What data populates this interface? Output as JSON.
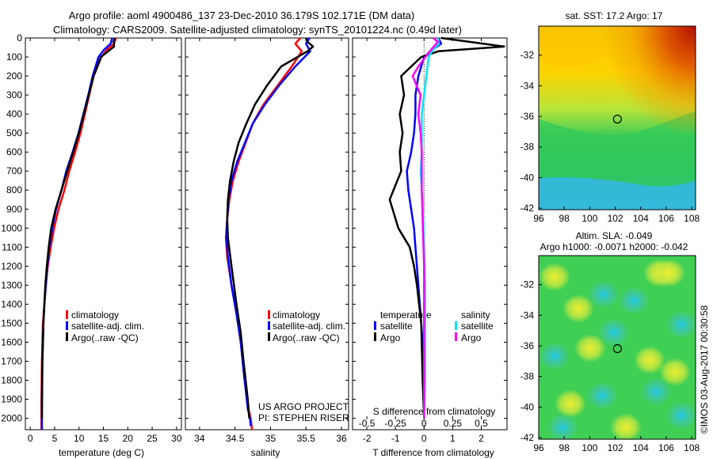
{
  "header": {
    "line1": "Argo profile: aoml 4900486_137 23-Dec-2010 36.179S 102.171E (DM data)",
    "line2": "Climatology: CARS2009. Satellite-adjusted climatology: synTS_20101224.nc (0.49d later)"
  },
  "sst_panel": {
    "title": "sat. SST: 17.2 Argo: 17"
  },
  "sla_panel": {
    "title1": "Altim. SLA: -0.049",
    "title2": "Argo h1000: -0.0071 h2000: -0.042"
  },
  "credits": {
    "project": "US ARGO PROJECT",
    "pi": "PI: STEPHEN RISER",
    "stamp": "©IMOS 03-Aug-2017 00:30:58"
  },
  "colors": {
    "climatology": "#ff0000",
    "satellite": "#0000ff",
    "argo": "#000000",
    "sal_satellite": "#00e5ff",
    "sal_argo": "#ff00ff"
  },
  "chart_data": [
    {
      "type": "line",
      "xlabel": "temperature (deg C)",
      "ylabel": "",
      "xlim": [
        -1,
        31
      ],
      "ylim": [
        2060,
        0
      ],
      "xticks": [
        0,
        5,
        10,
        15,
        20,
        25,
        30
      ],
      "yticks": [
        0,
        100,
        200,
        300,
        400,
        500,
        600,
        700,
        800,
        900,
        1000,
        1100,
        1200,
        1300,
        1400,
        1500,
        1600,
        1700,
        1800,
        1900,
        2000
      ],
      "legend": [
        "climatology",
        "satellite-adj. clim.",
        "Argo(..raw -QC)"
      ],
      "series": [
        {
          "name": "climatology",
          "color": "#ff0000",
          "x": [
            17.6,
            17.2,
            15.8,
            14.6,
            13.0,
            12.1,
            11.2,
            10.3,
            9.2,
            8.0,
            7.0,
            5.8,
            4.9,
            4.2,
            3.6,
            3.2,
            2.9,
            2.6,
            2.5,
            2.4,
            2.3,
            2.3
          ],
          "y": [
            0,
            30,
            60,
            100,
            200,
            300,
            400,
            500,
            600,
            700,
            800,
            900,
            1000,
            1100,
            1200,
            1300,
            1400,
            1500,
            1600,
            1700,
            1900,
            2060
          ]
        },
        {
          "name": "satellite-adj. clim.",
          "color": "#0000ff",
          "x": [
            16.8,
            16.5,
            15.2,
            14.0,
            12.8,
            11.9,
            10.9,
            9.9,
            8.7,
            7.4,
            6.4,
            5.3,
            4.5,
            3.9,
            3.5,
            3.2,
            2.9,
            2.7,
            2.6,
            2.5,
            2.4,
            2.4
          ],
          "y": [
            0,
            30,
            60,
            100,
            200,
            300,
            400,
            500,
            600,
            700,
            800,
            900,
            1000,
            1100,
            1200,
            1300,
            1400,
            1500,
            1600,
            1700,
            1900,
            2060
          ]
        },
        {
          "name": "Argo(..raw -QC)",
          "color": "#000000",
          "x": [
            17.3,
            17.1,
            17.2,
            14.5,
            13.0,
            12.0,
            11.0,
            10.0,
            8.8,
            7.6,
            6.4,
            5.2,
            4.3,
            3.8,
            3.4,
            3.1,
            2.9,
            2.7,
            2.6,
            2.5,
            2.4
          ],
          "y": [
            0,
            20,
            45,
            100,
            200,
            300,
            400,
            500,
            600,
            700,
            800,
            900,
            1000,
            1100,
            1200,
            1300,
            1400,
            1500,
            1600,
            1700,
            2000
          ]
        }
      ]
    },
    {
      "type": "line",
      "xlabel": "salinity",
      "ylabel": "",
      "xlim": [
        33.8,
        36.1
      ],
      "ylim": [
        2060,
        0
      ],
      "xticks": [
        34,
        34.5,
        35,
        35.5,
        36
      ],
      "xticklabels": [
        "34",
        "34.5",
        "35",
        "35.5",
        "36"
      ],
      "legend": [
        "climatology",
        "satellite-adj. clim.",
        "Argo(..raw -QC)"
      ],
      "series": [
        {
          "name": "climatology",
          "color": "#ff0000",
          "x": [
            35.42,
            35.35,
            35.44,
            35.3,
            35.1,
            34.9,
            34.75,
            34.65,
            34.55,
            34.47,
            34.42,
            34.39,
            34.37,
            34.39,
            34.45,
            34.52,
            34.58,
            34.63,
            34.66,
            34.69,
            34.72,
            34.74
          ],
          "y": [
            0,
            30,
            70,
            150,
            250,
            350,
            450,
            550,
            650,
            750,
            850,
            950,
            1050,
            1150,
            1300,
            1450,
            1600,
            1750,
            1850,
            1950,
            2000,
            2060
          ]
        },
        {
          "name": "satellite-adj. clim.",
          "color": "#0000ff",
          "x": [
            35.55,
            35.5,
            35.56,
            35.35,
            35.12,
            34.92,
            34.75,
            34.64,
            34.53,
            34.45,
            34.41,
            34.39,
            34.38,
            34.4,
            34.45,
            34.52,
            34.58,
            34.62,
            34.65,
            34.68,
            34.71,
            34.72
          ],
          "y": [
            0,
            30,
            70,
            150,
            250,
            350,
            450,
            550,
            650,
            750,
            850,
            950,
            1050,
            1150,
            1300,
            1450,
            1600,
            1750,
            1850,
            1950,
            2000,
            2040
          ]
        },
        {
          "name": "Argo(..raw -QC)",
          "color": "#000000",
          "x": [
            35.5,
            35.52,
            35.6,
            35.52,
            35.15,
            34.95,
            34.78,
            34.66,
            34.55,
            34.48,
            34.43,
            34.4,
            34.39,
            34.4,
            34.45,
            34.52,
            34.58,
            34.62,
            34.65,
            34.68,
            34.7
          ],
          "y": [
            0,
            20,
            45,
            70,
            150,
            250,
            350,
            450,
            550,
            650,
            750,
            850,
            950,
            1050,
            1200,
            1400,
            1550,
            1700,
            1800,
            1900,
            2000
          ]
        }
      ]
    },
    {
      "type": "line",
      "xlabel": "T difference from climatology",
      "top_axis_label": "S difference from climatology",
      "ylabel": "",
      "xlim": [
        -2.5,
        2.9
      ],
      "ylim": [
        2060,
        0
      ],
      "xticks": [
        -2,
        -1,
        0,
        1,
        2
      ],
      "top_xticks": [
        -0.5,
        -0.25,
        0,
        0.25,
        0.5
      ],
      "top_xlim": [
        -0.625,
        0.725
      ],
      "legend": [
        "temperature",
        "satellite",
        "Argo",
        "salinity",
        "satellite",
        "Argo"
      ],
      "series": [
        {
          "name": "satellite",
          "quantity": "temperature",
          "color": "#0000ff",
          "x": [
            0.5,
            0.6,
            0.3,
            0,
            -0.2,
            -0.3,
            -0.3,
            -0.35,
            -0.45,
            -0.6,
            -0.55,
            -0.45,
            -0.35,
            -0.3,
            -0.2,
            -0.1,
            -0.05,
            0,
            0,
            0
          ],
          "y": [
            0,
            30,
            60,
            100,
            200,
            300,
            400,
            500,
            600,
            700,
            800,
            900,
            1000,
            1100,
            1300,
            1500,
            1600,
            1700,
            1800,
            2000
          ]
        },
        {
          "name": "Argo",
          "quantity": "temperature",
          "color": "#000000",
          "x": [
            0.6,
            2.8,
            0.5,
            -0.1,
            -0.8,
            -0.7,
            -0.85,
            -0.75,
            -0.85,
            -0.8,
            -1.2,
            -0.9,
            -0.5,
            -0.35,
            -0.25,
            -0.1,
            -0.05,
            0
          ],
          "y": [
            0,
            45,
            70,
            100,
            200,
            300,
            400,
            500,
            600,
            700,
            850,
            1000,
            1100,
            1200,
            1300,
            1500,
            1800,
            2000
          ]
        },
        {
          "name": "satellite",
          "quantity": "salinity",
          "color": "#00e5ff",
          "x": [
            0.12,
            0.13,
            0.08,
            0.04,
            0.02,
            0.0,
            -0.02,
            -0.02,
            -0.02,
            -0.03,
            -0.02,
            -0.01,
            0.0,
            0.01,
            0.01,
            0.01,
            0.0
          ],
          "y": [
            0,
            30,
            60,
            100,
            200,
            300,
            400,
            500,
            600,
            700,
            800,
            900,
            1100,
            1300,
            1500,
            1800,
            2000
          ]
        },
        {
          "name": "Argo",
          "quantity": "salinity",
          "color": "#ff00ff",
          "x": [
            0.08,
            0.12,
            0.05,
            -0.05,
            -0.1,
            -0.03,
            -0.05,
            -0.03,
            -0.02,
            -0.02,
            -0.01,
            0.0,
            0.0,
            0.0
          ],
          "y": [
            0,
            20,
            70,
            150,
            200,
            300,
            400,
            500,
            600,
            800,
            1000,
            1200,
            1500,
            2000
          ]
        }
      ]
    },
    {
      "type": "heatmap",
      "title": "sat. SST: 17.2 Argo: 17",
      "xticks": [
        96,
        98,
        100,
        102,
        104,
        106,
        108
      ],
      "yticks": [
        -32,
        -34,
        -36,
        -38,
        -40,
        -42
      ],
      "xlim": [
        96,
        108.3
      ],
      "ylim": [
        -42.1,
        -30.1
      ],
      "marker": {
        "lon": 102.171,
        "lat": -36.179
      }
    },
    {
      "type": "heatmap",
      "title": "Argo h1000: -0.0071 h2000: -0.042",
      "subtitle": "Altim. SLA: -0.049",
      "xticks": [
        96,
        98,
        100,
        102,
        104,
        106,
        108
      ],
      "yticks": [
        -32,
        -34,
        -36,
        -38,
        -40,
        -42
      ],
      "xlim": [
        96,
        108.3
      ],
      "ylim": [
        -42.1,
        -30.1
      ],
      "marker": {
        "lon": 102.171,
        "lat": -36.179
      }
    }
  ]
}
